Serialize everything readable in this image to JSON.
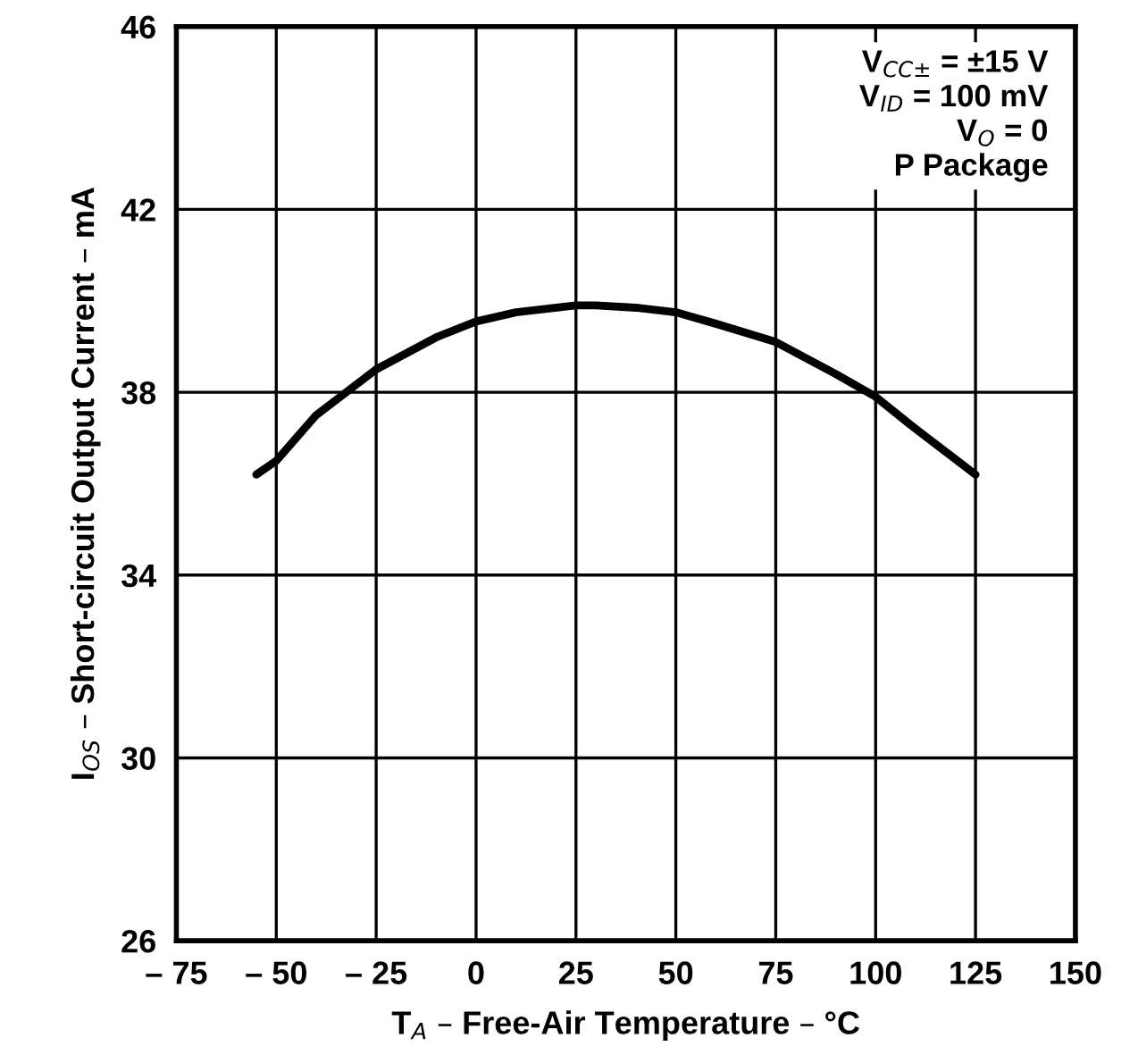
{
  "chart_data": {
    "type": "line",
    "xlabel": "T$_{A}$ – Free-Air Temperature – °C",
    "ylabel": "I$_{OS}$ – Short-circuit Output Current – mA",
    "x": [
      -55,
      -50,
      -40,
      -25,
      -10,
      0,
      10,
      25,
      30,
      40,
      50,
      60,
      75,
      90,
      100,
      110,
      125
    ],
    "series": [
      {
        "color": "#000000",
        "values": [
          36.2,
          36.5,
          37.5,
          38.5,
          39.2,
          39.55,
          39.75,
          39.9,
          39.9,
          39.85,
          39.75,
          39.5,
          39.1,
          38.4,
          37.9,
          37.2,
          36.2
        ]
      }
    ],
    "xlim": [
      -75,
      150
    ],
    "ylim": [
      26,
      46
    ],
    "xticks": [
      {
        "value": -75,
        "label": "– 75"
      },
      {
        "value": -50,
        "label": "– 50"
      },
      {
        "value": -25,
        "label": "– 25"
      },
      0,
      25,
      50,
      75,
      100,
      125,
      150
    ],
    "yticks": [
      26,
      30,
      34,
      38,
      42,
      46
    ],
    "grid": true,
    "marker": "none",
    "line_style": "solid",
    "annotations": [
      "V$_{CC±}$ = ±15 V\nV$_{ID}$ = 100 mV\nV$_{O}$ = 0\nP Package"
    ]
  }
}
